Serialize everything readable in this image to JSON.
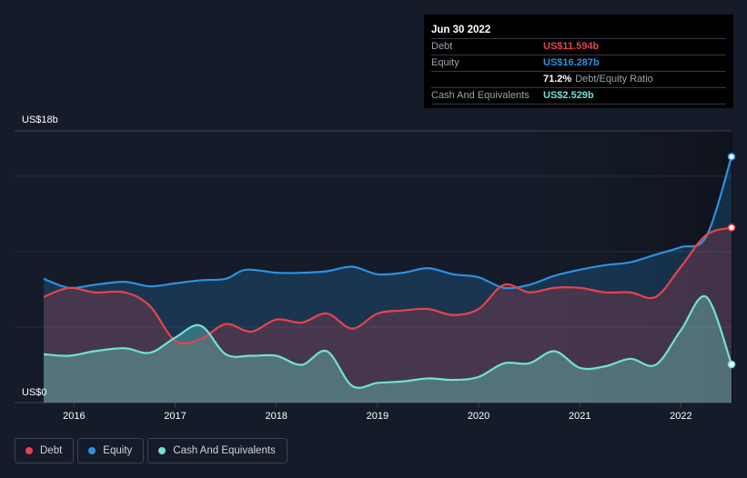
{
  "tooltip": {
    "date": "Jun 30 2022",
    "rows": [
      {
        "label": "Debt",
        "value": "US$11.594b",
        "color": "#e8424c"
      },
      {
        "label": "Equity",
        "value": "US$16.287b",
        "color": "#2b92e0"
      },
      {
        "label": "",
        "value": "71.2%",
        "sub": "Debt/Equity Ratio",
        "color": "#ffffff"
      },
      {
        "label": "Cash And Equivalents",
        "value": "US$2.529b",
        "color": "#6fe3d1"
      }
    ]
  },
  "legend": [
    {
      "label": "Debt",
      "color": "#e8424c"
    },
    {
      "label": "Equity",
      "color": "#2b92e0"
    },
    {
      "label": "Cash And Equivalents",
      "color": "#6fe3d1"
    }
  ],
  "chart_data": {
    "type": "area",
    "y_top_label": "US$18b",
    "y_bottom_label": "US$0",
    "ylim": [
      0,
      18
    ],
    "xlim": [
      2015.7,
      2022.5
    ],
    "x_ticks": [
      "2016",
      "2017",
      "2018",
      "2019",
      "2020",
      "2021",
      "2022"
    ],
    "x_tick_values": [
      2016,
      2017,
      2018,
      2019,
      2020,
      2021,
      2022
    ],
    "series": [
      {
        "name": "Equity",
        "color": "#2b92e0",
        "x": [
          2015.7,
          2015.95,
          2016.2,
          2016.5,
          2016.75,
          2017.0,
          2017.25,
          2017.5,
          2017.7,
          2018.0,
          2018.25,
          2018.5,
          2018.75,
          2019.0,
          2019.25,
          2019.5,
          2019.75,
          2020.0,
          2020.25,
          2020.5,
          2020.75,
          2021.0,
          2021.25,
          2021.5,
          2021.75,
          2022.0,
          2022.25,
          2022.5
        ],
        "y": [
          8.2,
          7.6,
          7.8,
          8.0,
          7.7,
          7.9,
          8.1,
          8.2,
          8.8,
          8.6,
          8.6,
          8.7,
          9.0,
          8.5,
          8.6,
          8.9,
          8.5,
          8.3,
          7.6,
          7.8,
          8.4,
          8.8,
          9.1,
          9.3,
          9.8,
          10.3,
          11.0,
          16.287
        ]
      },
      {
        "name": "Debt",
        "color": "#e8424c",
        "x": [
          2015.7,
          2015.95,
          2016.2,
          2016.5,
          2016.75,
          2017.0,
          2017.25,
          2017.5,
          2017.75,
          2018.0,
          2018.25,
          2018.5,
          2018.75,
          2019.0,
          2019.25,
          2019.5,
          2019.75,
          2020.0,
          2020.25,
          2020.5,
          2020.75,
          2021.0,
          2021.25,
          2021.5,
          2021.75,
          2022.0,
          2022.25,
          2022.5
        ],
        "y": [
          7.0,
          7.6,
          7.3,
          7.3,
          6.4,
          4.1,
          4.2,
          5.2,
          4.7,
          5.5,
          5.3,
          5.9,
          4.9,
          5.9,
          6.1,
          6.2,
          5.8,
          6.2,
          7.8,
          7.3,
          7.6,
          7.6,
          7.3,
          7.3,
          7.0,
          9.0,
          11.1,
          11.594
        ]
      },
      {
        "name": "Cash And Equivalents",
        "color": "#6fe3d1",
        "x": [
          2015.7,
          2015.95,
          2016.2,
          2016.5,
          2016.75,
          2017.0,
          2017.25,
          2017.5,
          2017.75,
          2018.0,
          2018.25,
          2018.5,
          2018.75,
          2019.0,
          2019.25,
          2019.5,
          2019.75,
          2020.0,
          2020.25,
          2020.5,
          2020.75,
          2021.0,
          2021.25,
          2021.5,
          2021.75,
          2022.0,
          2022.25,
          2022.5
        ],
        "y": [
          3.2,
          3.1,
          3.4,
          3.6,
          3.3,
          4.3,
          5.1,
          3.2,
          3.1,
          3.1,
          2.5,
          3.4,
          1.1,
          1.3,
          1.4,
          1.6,
          1.5,
          1.7,
          2.6,
          2.6,
          3.4,
          2.3,
          2.4,
          2.9,
          2.5,
          4.8,
          7.0,
          2.529
        ]
      }
    ]
  }
}
